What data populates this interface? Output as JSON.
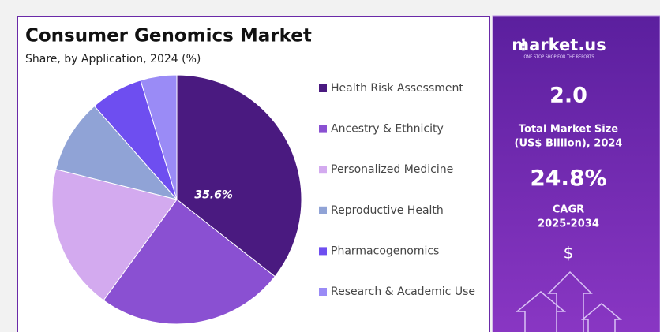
{
  "chart_data": {
    "type": "pie",
    "title": "Consumer Genomics Market",
    "subtitle": "Share, by Application, 2024 (%)",
    "categories": [
      "Health Risk Assessment",
      "Ancestry & Ethnicity",
      "Personalized Medicine",
      "Reproductive Health",
      "Pharmacogenomics",
      "Research & Academic Use"
    ],
    "values": [
      35.6,
      24.4,
      18.9,
      9.6,
      6.8,
      4.7
    ],
    "value_labels": [
      "35.6%",
      null,
      null,
      null,
      null,
      null
    ],
    "colors": [
      "#4a1a80",
      "#8a50d2",
      "#d3aaef",
      "#90a3d6",
      "#6e4ef0",
      "#9a8bf6"
    ],
    "legend": "right"
  },
  "sidebar": {
    "brand": "market.us",
    "tagline": "ONE STOP SHOP FOR THE REPORTS",
    "market_size": "2.0",
    "market_size_label": [
      "Total Market Size",
      "(US$ Billion), 2024"
    ],
    "cagr": "24.8%",
    "cagr_label": [
      "CAGR",
      "2025-2034"
    ],
    "currency": "$"
  }
}
